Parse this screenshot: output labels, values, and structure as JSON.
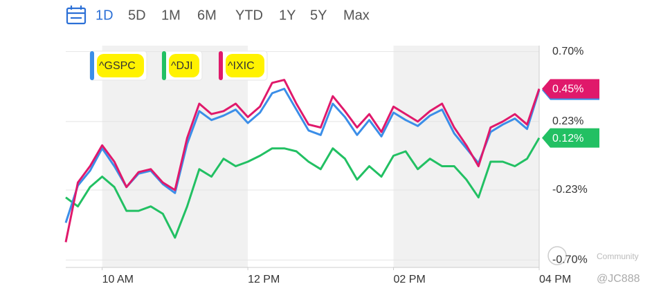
{
  "ranges": [
    "1D",
    "5D",
    "1M",
    "6M",
    "YTD",
    "1Y",
    "5Y",
    "Max"
  ],
  "watermark": [
    "Community",
    "@JC888"
  ],
  "chart_data": {
    "type": "line",
    "x": [
      570,
      580,
      590,
      600,
      610,
      620,
      630,
      640,
      650,
      660,
      670,
      680,
      690,
      700,
      710,
      720,
      730,
      740,
      750,
      760,
      770,
      780,
      790,
      800,
      810,
      820,
      830,
      840,
      850,
      860,
      870,
      880,
      890,
      900,
      910,
      920,
      930,
      940,
      950,
      960
    ],
    "xlim": [
      570,
      960
    ],
    "xticks": [
      {
        "value": 600,
        "label": "10 AM"
      },
      {
        "value": 720,
        "label": "12 PM"
      },
      {
        "value": 840,
        "label": "02 PM"
      },
      {
        "value": 960,
        "label": "04 PM"
      }
    ],
    "ylim": [
      -0.75,
      0.74
    ],
    "yticks": [
      {
        "value": 0.7,
        "label": "0.70%"
      },
      {
        "value": 0.23,
        "label": "0.23%"
      },
      {
        "value": -0.23,
        "label": "-0.23%"
      },
      {
        "value": -0.7,
        "label": "-0.70%"
      }
    ],
    "grid": true,
    "series": [
      {
        "name": "^GSPC",
        "color": "#3b8ee8",
        "values": [
          -0.45,
          -0.2,
          -0.1,
          0.05,
          -0.07,
          -0.21,
          -0.12,
          -0.1,
          -0.19,
          -0.25,
          0.08,
          0.3,
          0.24,
          0.27,
          0.31,
          0.22,
          0.29,
          0.42,
          0.45,
          0.31,
          0.17,
          0.14,
          0.35,
          0.26,
          0.14,
          0.24,
          0.13,
          0.29,
          0.24,
          0.2,
          0.27,
          0.31,
          0.15,
          0.05,
          -0.05,
          0.16,
          0.21,
          0.25,
          0.18,
          0.44
        ]
      },
      {
        "name": "^DJI",
        "color": "#22c063",
        "values": [
          -0.28,
          -0.34,
          -0.21,
          -0.14,
          -0.21,
          -0.37,
          -0.37,
          -0.34,
          -0.39,
          -0.55,
          -0.34,
          -0.09,
          -0.14,
          -0.02,
          -0.07,
          -0.04,
          0,
          0.05,
          0.05,
          0.03,
          -0.04,
          -0.09,
          0.05,
          -0.02,
          -0.16,
          -0.07,
          -0.14,
          0,
          0.03,
          -0.09,
          -0.02,
          -0.07,
          -0.07,
          -0.16,
          -0.28,
          -0.04,
          -0.04,
          -0.07,
          -0.02,
          0.12
        ],
        "value_labels": [
          null,
          null,
          null,
          null,
          null,
          null,
          null,
          null,
          null,
          null,
          null,
          null,
          null,
          null,
          null,
          null,
          null,
          null,
          null,
          null,
          null,
          null,
          null,
          null,
          null,
          null,
          null,
          null,
          null,
          null,
          null,
          null,
          null,
          null,
          null,
          null,
          null,
          null,
          null,
          "0.12%"
        ]
      },
      {
        "name": "^IXIC",
        "color": "#e0196b",
        "values": [
          -0.58,
          -0.18,
          -0.07,
          0.07,
          -0.04,
          -0.21,
          -0.11,
          -0.09,
          -0.18,
          -0.23,
          0.12,
          0.35,
          0.28,
          0.3,
          0.35,
          0.26,
          0.33,
          0.49,
          0.51,
          0.35,
          0.21,
          0.19,
          0.4,
          0.3,
          0.19,
          0.28,
          0.16,
          0.33,
          0.28,
          0.23,
          0.3,
          0.35,
          0.19,
          0.07,
          -0.07,
          0.19,
          0.23,
          0.28,
          0.21,
          0.45
        ],
        "value_labels": [
          null,
          null,
          null,
          null,
          null,
          null,
          null,
          null,
          null,
          null,
          null,
          null,
          null,
          null,
          null,
          null,
          null,
          null,
          null,
          null,
          null,
          null,
          null,
          null,
          null,
          null,
          null,
          null,
          null,
          null,
          null,
          null,
          null,
          null,
          null,
          null,
          null,
          null,
          null,
          "0.45%"
        ]
      }
    ]
  }
}
